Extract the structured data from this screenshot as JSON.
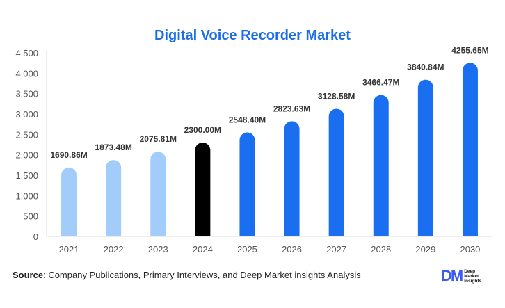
{
  "chart_data": {
    "type": "bar",
    "title": "Digital Voice Recorder Market",
    "categories": [
      "2021",
      "2022",
      "2023",
      "2024",
      "2025",
      "2026",
      "2027",
      "2028",
      "2029",
      "2030"
    ],
    "values": [
      1690.86,
      1873.48,
      2075.81,
      2300.0,
      2548.4,
      2823.63,
      3128.58,
      3466.47,
      3840.84,
      4255.65
    ],
    "data_labels": [
      "1690.86M",
      "1873.48M",
      "2075.81M",
      "2300.00M",
      "2548.40M",
      "2823.63M",
      "3128.58M",
      "3466.47M",
      "3840.84M",
      "4255.65M"
    ],
    "ylim": [
      0,
      4500
    ],
    "yticks": [
      0,
      500,
      1000,
      1500,
      2000,
      2500,
      3000,
      3500,
      4000,
      4500
    ],
    "ytick_labels": [
      "0",
      "500",
      "1,000",
      "1,500",
      "2,000",
      "2,500",
      "3,000",
      "3,500",
      "4,000",
      "4,500"
    ],
    "xlabel": "",
    "ylabel": "",
    "grid": false,
    "colors": {
      "historical": "#a2cdfb",
      "base_year": "#000000",
      "forecast": "#1a6ff0",
      "title": "#1a6fe8"
    },
    "bar_color_groups": [
      "historical",
      "historical",
      "historical",
      "base_year",
      "forecast",
      "forecast",
      "forecast",
      "forecast",
      "forecast",
      "forecast"
    ]
  },
  "footer": {
    "source_label": "Source",
    "source_text": ": Company Publications, Primary Interviews, and Deep Market insights Analysis",
    "logo_mark": "DM",
    "logo_lines": [
      "Deep",
      "Market",
      "Insights"
    ]
  }
}
